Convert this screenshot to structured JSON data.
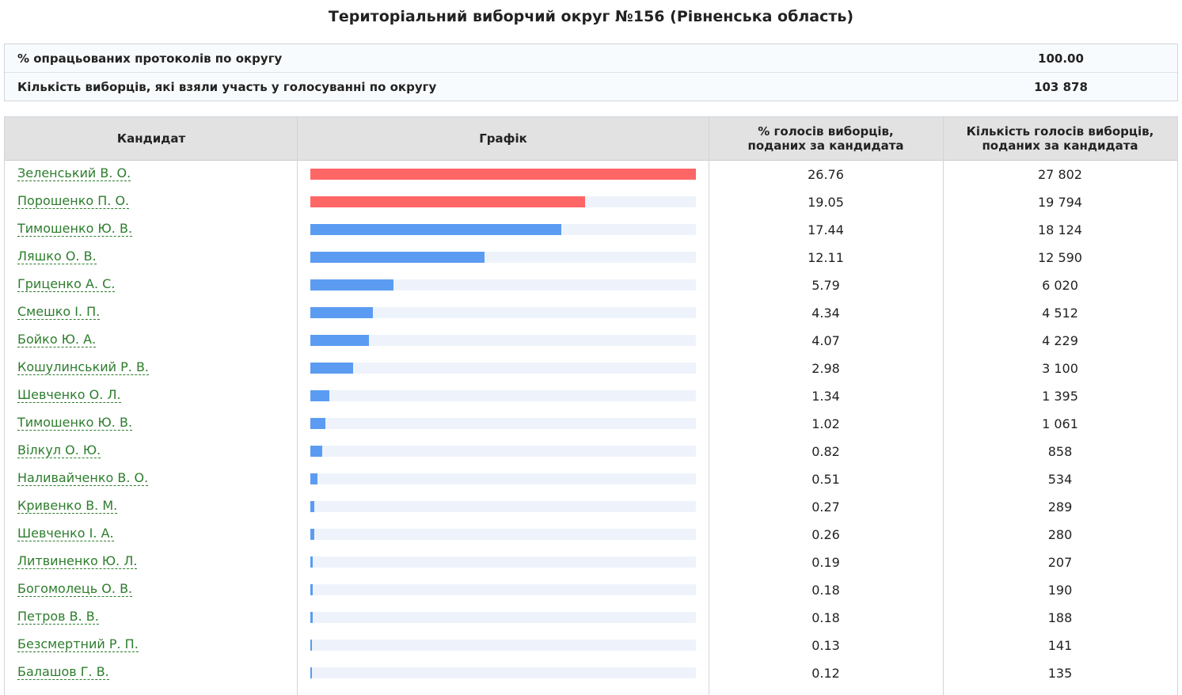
{
  "title": "Територіальний виборчий округ №156 (Рівненська область)",
  "summary": [
    {
      "label": "% опрацьованих протоколів по округу",
      "value": "100.00"
    },
    {
      "label": "Кількість виборців, які взяли участь у голосуванні по округу",
      "value": "103 878"
    }
  ],
  "table": {
    "headers": {
      "candidate": "Кандидат",
      "chart": "Графік",
      "percent": "% голосів виборців,\nподаних за кандидата",
      "votes": "Кількість голосів виборців,\nподаних за кандидата"
    },
    "colors": {
      "highlight": "#ff6666",
      "normal": "#5b9cf2",
      "track": "#eef3fb"
    },
    "rows": [
      {
        "name": "Зеленський В. О.",
        "percent": "26.76",
        "votes": "27 802",
        "highlight": true
      },
      {
        "name": "Порошенко П. О.",
        "percent": "19.05",
        "votes": "19 794",
        "highlight": true
      },
      {
        "name": "Тимошенко Ю. В.",
        "percent": "17.44",
        "votes": "18 124",
        "highlight": false
      },
      {
        "name": "Ляшко О. В.",
        "percent": "12.11",
        "votes": "12 590",
        "highlight": false
      },
      {
        "name": "Гриценко А. С.",
        "percent": "5.79",
        "votes": "6 020",
        "highlight": false
      },
      {
        "name": "Смешко І. П.",
        "percent": "4.34",
        "votes": "4 512",
        "highlight": false
      },
      {
        "name": "Бойко Ю. А.",
        "percent": "4.07",
        "votes": "4 229",
        "highlight": false
      },
      {
        "name": "Кошулинський Р. В.",
        "percent": "2.98",
        "votes": "3 100",
        "highlight": false
      },
      {
        "name": "Шевченко О. Л.",
        "percent": "1.34",
        "votes": "1 395",
        "highlight": false
      },
      {
        "name": "Тимошенко Ю. В.",
        "percent": "1.02",
        "votes": "1 061",
        "highlight": false
      },
      {
        "name": "Вілкул О. Ю.",
        "percent": "0.82",
        "votes": "858",
        "highlight": false
      },
      {
        "name": "Наливайченко В. О.",
        "percent": "0.51",
        "votes": "534",
        "highlight": false
      },
      {
        "name": "Кривенко В. М.",
        "percent": "0.27",
        "votes": "289",
        "highlight": false
      },
      {
        "name": "Шевченко І. А.",
        "percent": "0.26",
        "votes": "280",
        "highlight": false
      },
      {
        "name": "Литвиненко Ю. Л.",
        "percent": "0.19",
        "votes": "207",
        "highlight": false
      },
      {
        "name": "Богомолець О. В.",
        "percent": "0.18",
        "votes": "190",
        "highlight": false
      },
      {
        "name": "Петров В. В.",
        "percent": "0.18",
        "votes": "188",
        "highlight": false
      },
      {
        "name": "Безсмертний Р. П.",
        "percent": "0.13",
        "votes": "141",
        "highlight": false
      },
      {
        "name": "Балашов Г. В.",
        "percent": "0.12",
        "votes": "135",
        "highlight": false
      }
    ]
  }
}
